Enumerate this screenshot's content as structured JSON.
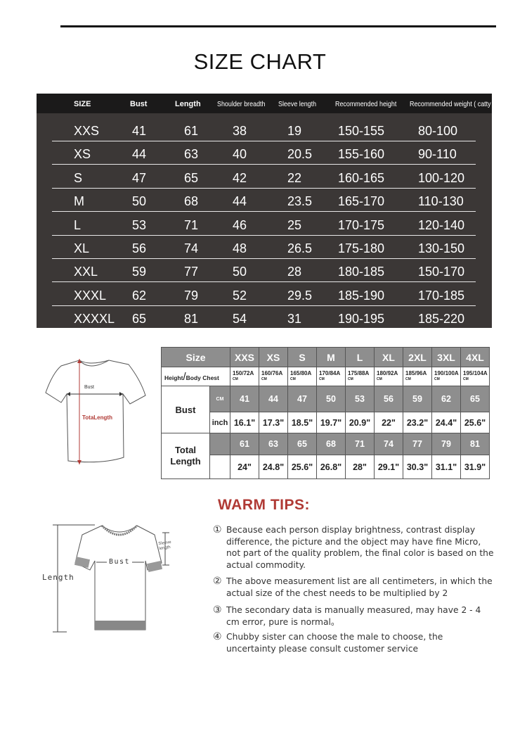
{
  "title": "SIZE CHART",
  "main_table": {
    "headers": [
      "SIZE",
      "Bust",
      "Length",
      "Shoulder breadth",
      "Sleeve length",
      "Recommended height",
      "Recommended weight ( catty )"
    ],
    "rows": [
      [
        "XXS",
        "41",
        "61",
        "38",
        "19",
        "150-155",
        "80-100"
      ],
      [
        "XS",
        "44",
        "63",
        "40",
        "20.5",
        "155-160",
        "90-110"
      ],
      [
        "S",
        "47",
        "65",
        "42",
        "22",
        "160-165",
        "100-120"
      ],
      [
        "M",
        "50",
        "68",
        "44",
        "23.5",
        "165-170",
        "110-130"
      ],
      [
        "L",
        "53",
        "71",
        "46",
        "25",
        "170-175",
        "120-140"
      ],
      [
        "XL",
        "56",
        "74",
        "48",
        "26.5",
        "175-180",
        "130-150"
      ],
      [
        "XXL",
        "59",
        "77",
        "50",
        "28",
        "180-185",
        "150-170"
      ],
      [
        "XXXL",
        "62",
        "79",
        "52",
        "29.5",
        "185-190",
        "170-185"
      ],
      [
        "XXXXL",
        "65",
        "81",
        "54",
        "31",
        "190-195",
        "185-220"
      ]
    ]
  },
  "diagram1": {
    "bust_label": "Bust",
    "length_label": "TotaLength"
  },
  "size_table": {
    "size_label": "Size",
    "sizes": [
      "XXS",
      "XS",
      "S",
      "M",
      "L",
      "XL",
      "2XL",
      "3XL",
      "4XL"
    ],
    "height_label_a": "Height",
    "height_label_b": "Body Chest",
    "height_chest": [
      "150/72A",
      "160/76A",
      "165/80A",
      "170/84A",
      "175/88A",
      "180/92A",
      "185/96A",
      "190/100A",
      "195/104A"
    ],
    "unit_small": "CM",
    "bust_label": "Bust",
    "cm_label": "CM",
    "inch_label": "inch",
    "bust_cm": [
      "41",
      "44",
      "47",
      "50",
      "53",
      "56",
      "59",
      "62",
      "65"
    ],
    "bust_inch": [
      "16.1\"",
      "17.3\"",
      "18.5\"",
      "19.7\"",
      "20.9\"",
      "22\"",
      "23.2\"",
      "24.4\"",
      "25.6\""
    ],
    "length_label_a": "Total",
    "length_label_b": "Length",
    "length_cm": [
      "61",
      "63",
      "65",
      "68",
      "71",
      "74",
      "77",
      "79",
      "81"
    ],
    "length_inch": [
      "24\"",
      "24.8\"",
      "25.6\"",
      "26.8\"",
      "28\"",
      "29.1\"",
      "30.3\"",
      "31.1\"",
      "31.9\""
    ]
  },
  "diagram2": {
    "length_label": "Length",
    "bust_label": "Bust",
    "sleeve_label_a": "Sleeve",
    "sleeve_label_b": "length"
  },
  "warm_tips": {
    "title": "WARM TIPS:",
    "items": [
      {
        "num": "①",
        "text": "Because each person display brightness, contrast display difference, the picture and the object may have fine Micro, not part of the quality problem, the final color is based on the actual commodity."
      },
      {
        "num": "②",
        "text": "The above measurement list are all centimeters, in which the actual size of the chest needs to be multiplied by 2"
      },
      {
        "num": "③",
        "text": "The secondary data is manually measured, may have 2 - 4 cm error, pure is normal。"
      },
      {
        "num": "④",
        "text": "Chubby sister can choose the male to choose, the uncertainty please consult customer service"
      }
    ]
  },
  "colors": {
    "header_bg": "#1b1a1a",
    "table_bg": "#3b3736",
    "gray_cell": "#8e8e8e",
    "tips_title": "#b03a35",
    "arrow": "#b03a35"
  }
}
